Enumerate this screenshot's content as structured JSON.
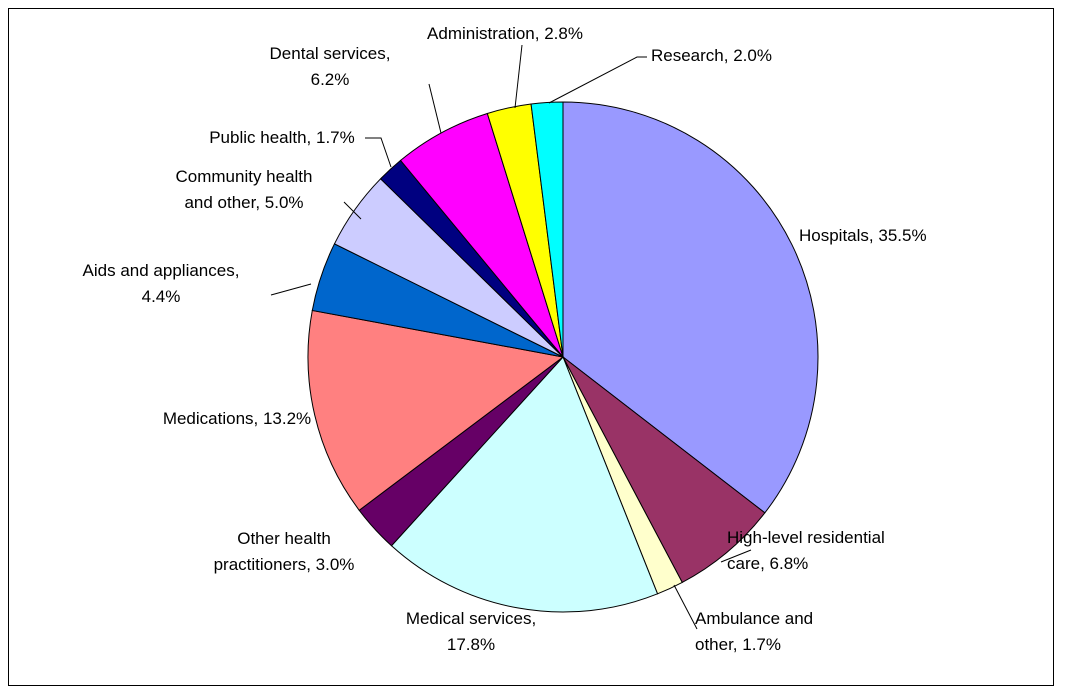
{
  "chart_data": {
    "type": "pie",
    "title": "",
    "legend": "none",
    "start_angle_deg": 0,
    "direction": "clockwise",
    "slices": [
      {
        "label_lines": [
          "Hospitals, 35.5%"
        ],
        "value": 35.5,
        "color": "#9999FF"
      },
      {
        "label_lines": [
          "High-level residential",
          "care, 6.8%"
        ],
        "value": 6.8,
        "color": "#993366"
      },
      {
        "label_lines": [
          "Ambulance and",
          "other, 1.7%"
        ],
        "value": 1.7,
        "color": "#FFFFCC"
      },
      {
        "label_lines": [
          "Medical services,",
          "17.8%"
        ],
        "value": 17.8,
        "color": "#CCFFFF"
      },
      {
        "label_lines": [
          "Other health",
          "practitioners, 3.0%"
        ],
        "value": 3.0,
        "color": "#660066"
      },
      {
        "label_lines": [
          "Medications, 13.2%"
        ],
        "value": 13.2,
        "color": "#FF8080"
      },
      {
        "label_lines": [
          "Aids and appliances,",
          "4.4%"
        ],
        "value": 4.4,
        "color": "#0066CC"
      },
      {
        "label_lines": [
          "Community health",
          "and other, 5.0%"
        ],
        "value": 5.0,
        "color": "#CCCCFF"
      },
      {
        "label_lines": [
          "Public health, 1.7%"
        ],
        "value": 1.7,
        "color": "#000080"
      },
      {
        "label_lines": [
          "Dental services,",
          "6.2%"
        ],
        "value": 6.2,
        "color": "#FF00FF"
      },
      {
        "label_lines": [
          "Administration, 2.8%"
        ],
        "value": 2.8,
        "color": "#FFFF00"
      },
      {
        "label_lines": [
          "Research, 2.0%"
        ],
        "value": 2.0,
        "color": "#00FFFF"
      }
    ]
  }
}
